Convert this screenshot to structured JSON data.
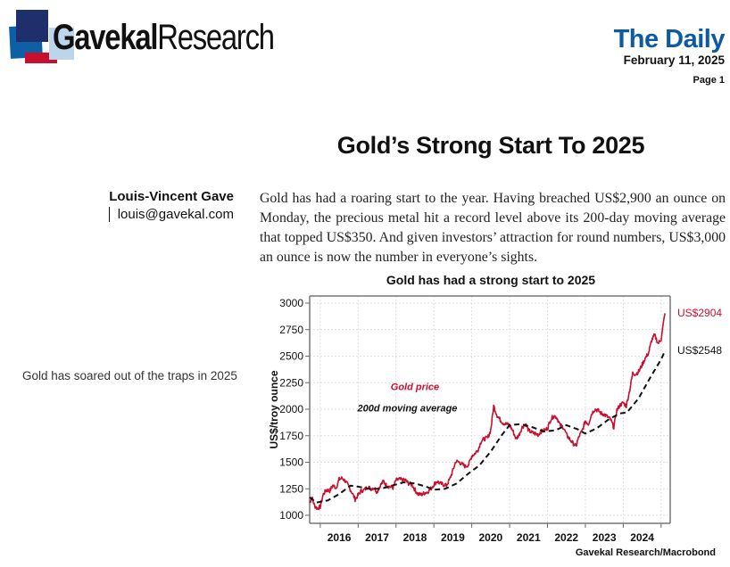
{
  "header": {
    "logo": {
      "bold": "Gavekal",
      "regular": "Research"
    },
    "publication": "The Daily",
    "date": "February 11, 2025",
    "page": "Page 1"
  },
  "article": {
    "title": "Gold’s Strong Start To 2025",
    "author_name": "Louis-Vincent Gave",
    "author_email": "louis@gavekal.com",
    "body": "Gold has had a roaring start to the year. Having breached US$2,900 an ounce on Monday, the precious metal hit a record level above its 200-day moving average that topped US$350. And given investors’ attraction for round numbers, US$3,000 an ounce is now the number in everyone’s sights.",
    "side_caption": "Gold has soared out of the traps in 2025",
    "chart_source": "Gavekal Research/Macrobond"
  },
  "colors": {
    "gold_price": "#c8102e",
    "moving_average": "#111111",
    "brand_blue": "#0d5aa0"
  },
  "chart_data": {
    "type": "line",
    "title": "Gold has had a strong start to 2025",
    "xlabel": "",
    "ylabel": "US$/troy ounce",
    "xlim": [
      2015.72,
      2025.24
    ],
    "ylim": [
      950,
      3070
    ],
    "yticks": [
      1000,
      1250,
      1500,
      1750,
      2000,
      2250,
      2500,
      2750,
      3000
    ],
    "xtick_labels": [
      "2016",
      "2017",
      "2018",
      "2019",
      "2020",
      "2021",
      "2022",
      "2023",
      "2024"
    ],
    "grid": true,
    "legend": "inline-labels",
    "series": [
      {
        "name": "Gold price",
        "style": "solid",
        "label_pos": [
          2018.5,
          2180
        ],
        "end_label": "US$2904",
        "x": [
          2015.72,
          2015.78,
          2015.85,
          2015.92,
          2016.0,
          2016.08,
          2016.17,
          2016.25,
          2016.33,
          2016.42,
          2016.5,
          2016.58,
          2016.67,
          2016.75,
          2016.83,
          2016.92,
          2017.0,
          2017.08,
          2017.17,
          2017.25,
          2017.33,
          2017.42,
          2017.5,
          2017.58,
          2017.67,
          2017.75,
          2017.83,
          2017.92,
          2018.0,
          2018.08,
          2018.17,
          2018.25,
          2018.33,
          2018.42,
          2018.5,
          2018.58,
          2018.67,
          2018.75,
          2018.83,
          2018.92,
          2019.0,
          2019.08,
          2019.17,
          2019.25,
          2019.33,
          2019.42,
          2019.5,
          2019.58,
          2019.67,
          2019.75,
          2019.83,
          2019.92,
          2020.0,
          2020.08,
          2020.17,
          2020.25,
          2020.33,
          2020.42,
          2020.5,
          2020.58,
          2020.67,
          2020.75,
          2020.83,
          2020.92,
          2021.0,
          2021.08,
          2021.17,
          2021.25,
          2021.33,
          2021.42,
          2021.5,
          2021.58,
          2021.67,
          2021.75,
          2021.83,
          2021.92,
          2022.0,
          2022.08,
          2022.17,
          2022.25,
          2022.33,
          2022.42,
          2022.5,
          2022.58,
          2022.67,
          2022.75,
          2022.83,
          2022.92,
          2023.0,
          2023.08,
          2023.17,
          2023.25,
          2023.33,
          2023.42,
          2023.5,
          2023.58,
          2023.67,
          2023.75,
          2023.83,
          2023.92,
          2024.0,
          2024.08,
          2024.17,
          2024.25,
          2024.33,
          2024.42,
          2024.5,
          2024.58,
          2024.67,
          2024.75,
          2024.83,
          2024.92,
          2025.0,
          2025.1
        ],
        "y": [
          1120,
          1170,
          1090,
          1065,
          1080,
          1200,
          1240,
          1230,
          1280,
          1260,
          1340,
          1350,
          1320,
          1270,
          1220,
          1150,
          1190,
          1230,
          1240,
          1270,
          1250,
          1260,
          1220,
          1280,
          1320,
          1280,
          1270,
          1260,
          1330,
          1340,
          1330,
          1330,
          1300,
          1290,
          1240,
          1200,
          1195,
          1210,
          1220,
          1250,
          1290,
          1320,
          1300,
          1290,
          1280,
          1340,
          1420,
          1510,
          1500,
          1480,
          1460,
          1480,
          1560,
          1580,
          1620,
          1700,
          1720,
          1730,
          1800,
          2030,
          1940,
          1900,
          1870,
          1860,
          1850,
          1800,
          1720,
          1760,
          1830,
          1860,
          1800,
          1780,
          1770,
          1760,
          1790,
          1800,
          1820,
          1900,
          1940,
          1920,
          1850,
          1830,
          1760,
          1720,
          1680,
          1650,
          1740,
          1800,
          1890,
          1860,
          1960,
          2000,
          1990,
          1960,
          1950,
          1930,
          1900,
          1830,
          1990,
          2040,
          2060,
          2030,
          2180,
          2340,
          2330,
          2360,
          2420,
          2480,
          2530,
          2650,
          2700,
          2620,
          2660,
          2904
        ]
      },
      {
        "name": "200d moving average",
        "style": "dashed",
        "label_pos": [
          2018.3,
          1980
        ],
        "end_label": "US$2548",
        "x": [
          2015.72,
          2015.9,
          2016.2,
          2016.5,
          2016.8,
          2017.0,
          2017.3,
          2017.6,
          2017.9,
          2018.2,
          2018.5,
          2018.8,
          2019.0,
          2019.3,
          2019.6,
          2019.9,
          2020.2,
          2020.5,
          2020.8,
          2021.0,
          2021.3,
          2021.6,
          2021.9,
          2022.2,
          2022.5,
          2022.8,
          2023.0,
          2023.3,
          2023.6,
          2023.9,
          2024.1,
          2024.4,
          2024.7,
          2025.0,
          2025.1
        ],
        "y": [
          1170,
          1120,
          1140,
          1200,
          1280,
          1270,
          1250,
          1250,
          1280,
          1310,
          1300,
          1270,
          1240,
          1250,
          1300,
          1390,
          1470,
          1600,
          1760,
          1850,
          1860,
          1830,
          1790,
          1800,
          1850,
          1810,
          1770,
          1820,
          1900,
          1960,
          1970,
          2100,
          2290,
          2470,
          2548
        ]
      }
    ]
  }
}
